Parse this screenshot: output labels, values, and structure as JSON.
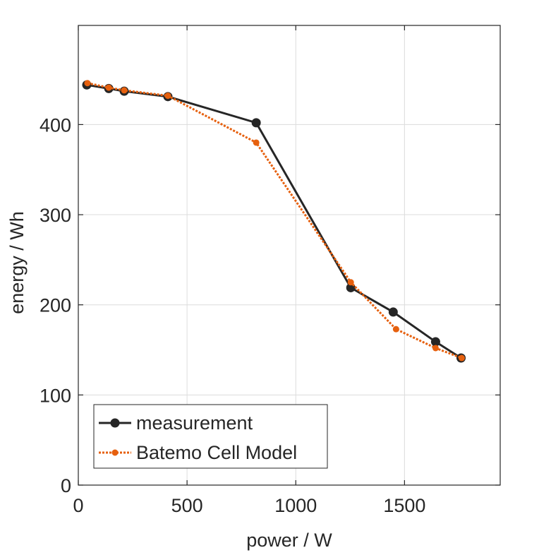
{
  "chart_data": {
    "type": "line",
    "title": "",
    "xlabel": "power / W",
    "ylabel": "energy / Wh",
    "xlim": [
      0,
      1940
    ],
    "ylim": [
      0,
      510
    ],
    "xticks": [
      0,
      500,
      1000,
      1500
    ],
    "yticks": [
      0,
      100,
      200,
      300,
      400
    ],
    "xtick_labels": [
      "0",
      "500",
      "1000",
      "1500"
    ],
    "ytick_labels": [
      "0",
      "100",
      "200",
      "300",
      "400"
    ],
    "grid": true,
    "legend_placement": "bottom-left",
    "series": [
      {
        "name": "measurement",
        "color": "#262626",
        "line_style": "solid",
        "x": [
          39,
          140,
          211,
          412,
          818,
          1253,
          1448,
          1643,
          1760
        ],
        "y": [
          444,
          440,
          437,
          431,
          402,
          219,
          192,
          159,
          141
        ]
      },
      {
        "name": "Batemo Cell Model",
        "color": "#E6600E",
        "line_style": "dotted",
        "x": [
          42,
          140,
          211,
          412,
          818,
          1253,
          1461,
          1643,
          1763
        ],
        "y": [
          446,
          441,
          438,
          432,
          380,
          225,
          173,
          152,
          141
        ]
      }
    ]
  }
}
